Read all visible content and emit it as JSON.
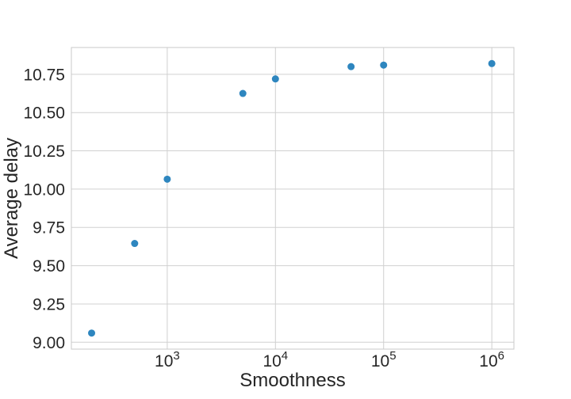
{
  "chart_data": {
    "type": "scatter",
    "xlabel": "Smoothness",
    "ylabel": "Average delay",
    "xscale": "log",
    "xlim": [
      130,
      1600000
    ],
    "ylim": [
      8.955,
      10.925
    ],
    "grid": true,
    "x_ticks": [
      {
        "value": 1000,
        "base": "10",
        "exp": "3"
      },
      {
        "value": 10000,
        "base": "10",
        "exp": "4"
      },
      {
        "value": 100000,
        "base": "10",
        "exp": "5"
      },
      {
        "value": 1000000,
        "base": "10",
        "exp": "6"
      }
    ],
    "y_ticks": [
      {
        "value": 9.0,
        "label": "9.00"
      },
      {
        "value": 9.25,
        "label": "9.25"
      },
      {
        "value": 9.5,
        "label": "9.50"
      },
      {
        "value": 9.75,
        "label": "9.75"
      },
      {
        "value": 10.0,
        "label": "10.00"
      },
      {
        "value": 10.25,
        "label": "10.25"
      },
      {
        "value": 10.5,
        "label": "10.50"
      },
      {
        "value": 10.75,
        "label": "10.75"
      }
    ],
    "series": [
      {
        "color": "#2e86bf",
        "points": [
          {
            "x": 200,
            "y": 9.06
          },
          {
            "x": 500,
            "y": 9.645
          },
          {
            "x": 1000,
            "y": 10.065
          },
          {
            "x": 5000,
            "y": 10.625
          },
          {
            "x": 10000,
            "y": 10.72
          },
          {
            "x": 50000,
            "y": 10.8
          },
          {
            "x": 100000,
            "y": 10.81
          },
          {
            "x": 1000000,
            "y": 10.82
          }
        ]
      }
    ]
  },
  "style": {
    "grid_color": "#d0d0d0",
    "frame_color": "#c8c8c8",
    "text_color": "#262626"
  }
}
